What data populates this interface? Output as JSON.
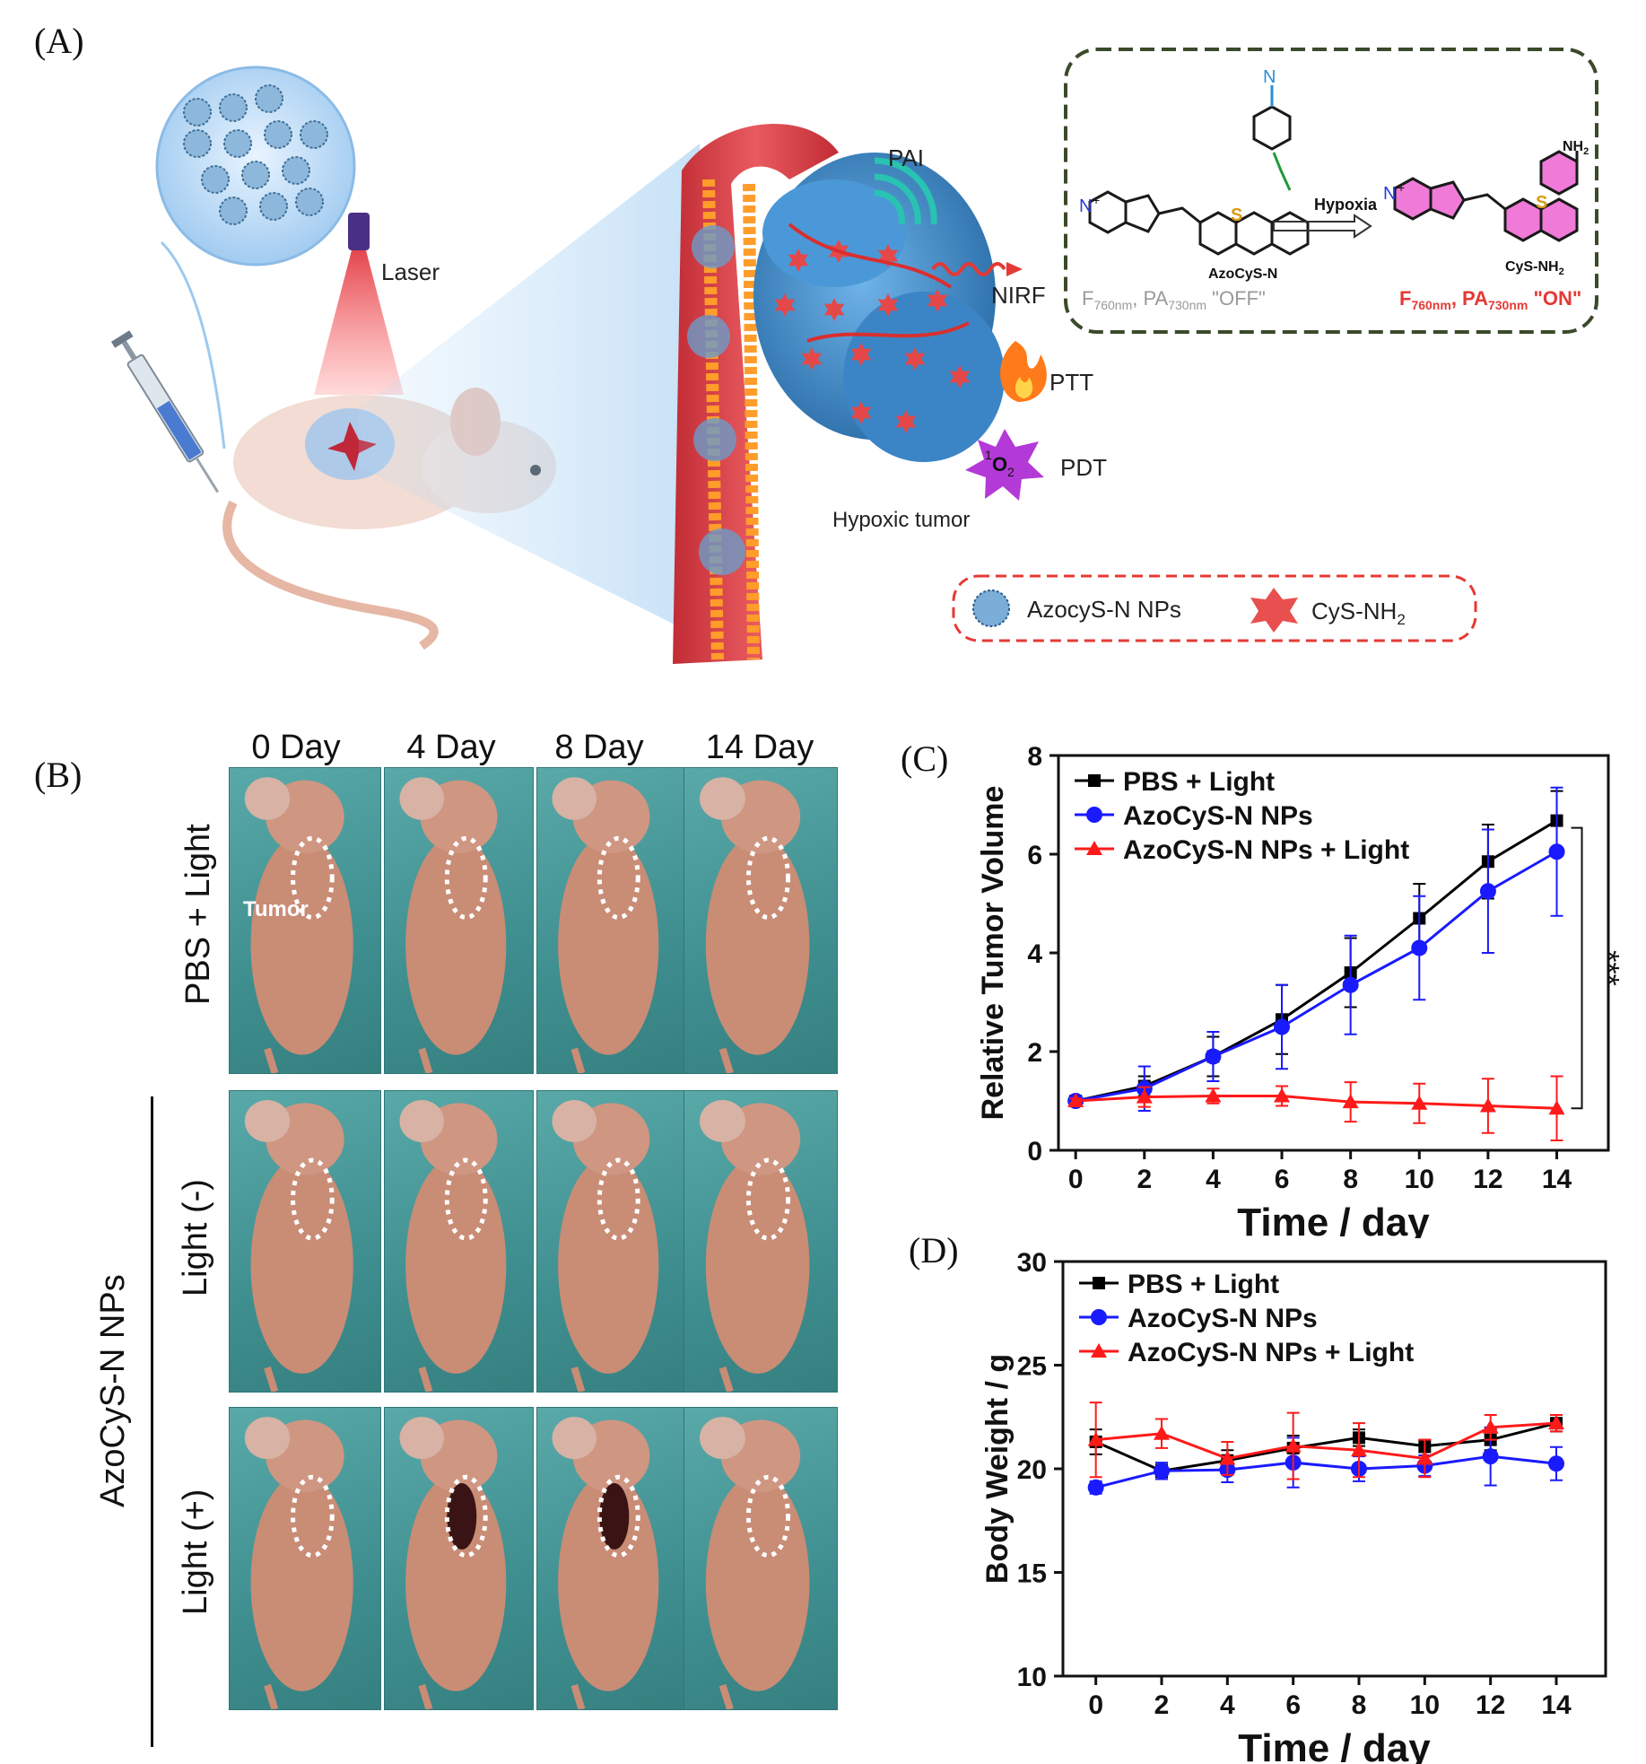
{
  "panel_labels": {
    "a": "(A)",
    "b": "(B)",
    "c": "(C)",
    "d": "(D)"
  },
  "schematic": {
    "laser": "Laser",
    "pai": "PAI",
    "nirf": "NIRF",
    "ptt": "PTT",
    "pdt": "PDT",
    "o2_sup": "1",
    "o2": "O",
    "o2_sub": "2",
    "hypoxic_tumor": "Hypoxic tumor",
    "legend_nps": "AzocyS-N NPs",
    "legend_cys": "CyS-NH",
    "legend_cys_sub": "2",
    "colors": {
      "accent_red": "#e53935",
      "dashed_green": "#3a4a2a",
      "vessel": "#e2434a",
      "tumor": "#3d8fd1"
    },
    "reaction": {
      "arrow_label": "Hypoxia",
      "left_name": "AzoCyS-N",
      "left_state_F": "F",
      "left_state_F_sub": "760nm",
      "left_state_PA": ", PA",
      "left_state_PA_sub": "730nm",
      "left_state": " \"OFF\"",
      "right_name": "CyS-NH",
      "right_name_sub": "2",
      "right_state_F": "F",
      "right_state_F_sub": "760nm",
      "right_state_PA": ", PA",
      "right_state_PA_sub": "730nm",
      "right_state": " \"ON\"",
      "atom_N": "N",
      "atom_S": "S",
      "atom_NH2": "NH",
      "atom_NH2_sub": "2",
      "charge": "+"
    }
  },
  "photos": {
    "days": [
      "0 Day",
      "4 Day",
      "8 Day",
      "14 Day"
    ],
    "row_labels": [
      "PBS + Light",
      "Light (-)",
      "Light (+)"
    ],
    "group_label": "AzoCyS-N NPs",
    "tumor_label": "Tumor"
  },
  "chart_data": [
    {
      "type": "line",
      "panel": "C",
      "xlabel": "Time / day",
      "ylabel": "Relative Tumor Volume",
      "xlim": [
        -0.5,
        15.5
      ],
      "ylim": [
        0,
        8
      ],
      "xticks": [
        0,
        2,
        4,
        6,
        8,
        10,
        12,
        14
      ],
      "yticks": [
        0,
        2,
        4,
        6,
        8
      ],
      "x": [
        0,
        2,
        4,
        6,
        8,
        10,
        12,
        14
      ],
      "legend_position": "top-left",
      "significance": "***",
      "series": [
        {
          "name": "PBS + Light",
          "color": "#000000",
          "marker": "square",
          "values": [
            1.0,
            1.3,
            1.9,
            2.65,
            3.6,
            4.7,
            5.85,
            6.68
          ],
          "errors": [
            0.05,
            0.2,
            0.4,
            0.7,
            0.7,
            0.7,
            0.75,
            0.6
          ]
        },
        {
          "name": "AzoCyS-N NPs",
          "color": "#1a1aff",
          "marker": "circle",
          "values": [
            1.0,
            1.25,
            1.9,
            2.5,
            3.35,
            4.1,
            5.25,
            6.05
          ],
          "errors": [
            0.05,
            0.45,
            0.5,
            0.85,
            1.0,
            1.05,
            1.25,
            1.3
          ]
        },
        {
          "name": "AzoCyS-N NPs + Light",
          "color": "#ff1a1a",
          "marker": "triangle",
          "values": [
            1.0,
            1.08,
            1.1,
            1.1,
            0.98,
            0.95,
            0.9,
            0.85
          ],
          "errors": [
            0.05,
            0.2,
            0.15,
            0.2,
            0.4,
            0.4,
            0.55,
            0.65
          ]
        }
      ]
    },
    {
      "type": "line",
      "panel": "D",
      "xlabel": "Time / day",
      "ylabel": "Body Weight / g",
      "xlim": [
        -1,
        15.5
      ],
      "ylim": [
        10,
        30
      ],
      "xticks": [
        0,
        2,
        4,
        6,
        8,
        10,
        12,
        14
      ],
      "yticks": [
        10,
        15,
        20,
        25,
        30
      ],
      "x": [
        0,
        2,
        4,
        6,
        8,
        10,
        12,
        14
      ],
      "legend_position": "top-left",
      "series": [
        {
          "name": "PBS + Light",
          "color": "#000000",
          "marker": "square",
          "values": [
            21.3,
            19.9,
            20.4,
            21.0,
            21.5,
            21.1,
            21.4,
            22.2
          ],
          "errors": [
            0.6,
            0.3,
            0.5,
            0.6,
            0.4,
            0.3,
            0.5,
            0.4
          ]
        },
        {
          "name": "AzoCyS-N NPs",
          "color": "#1a1aff",
          "marker": "circle",
          "values": [
            19.1,
            19.9,
            19.95,
            20.3,
            20.0,
            20.15,
            20.6,
            20.25
          ],
          "errors": [
            0.3,
            0.4,
            0.6,
            1.2,
            0.6,
            0.5,
            1.4,
            0.8
          ]
        },
        {
          "name": "AzoCyS-N NPs + Light",
          "color": "#ff1a1a",
          "marker": "triangle",
          "values": [
            21.4,
            21.7,
            20.5,
            21.1,
            20.9,
            20.5,
            22.0,
            22.2
          ],
          "errors": [
            1.8,
            0.7,
            0.8,
            1.6,
            1.3,
            0.9,
            0.6,
            0.4
          ]
        }
      ]
    }
  ]
}
